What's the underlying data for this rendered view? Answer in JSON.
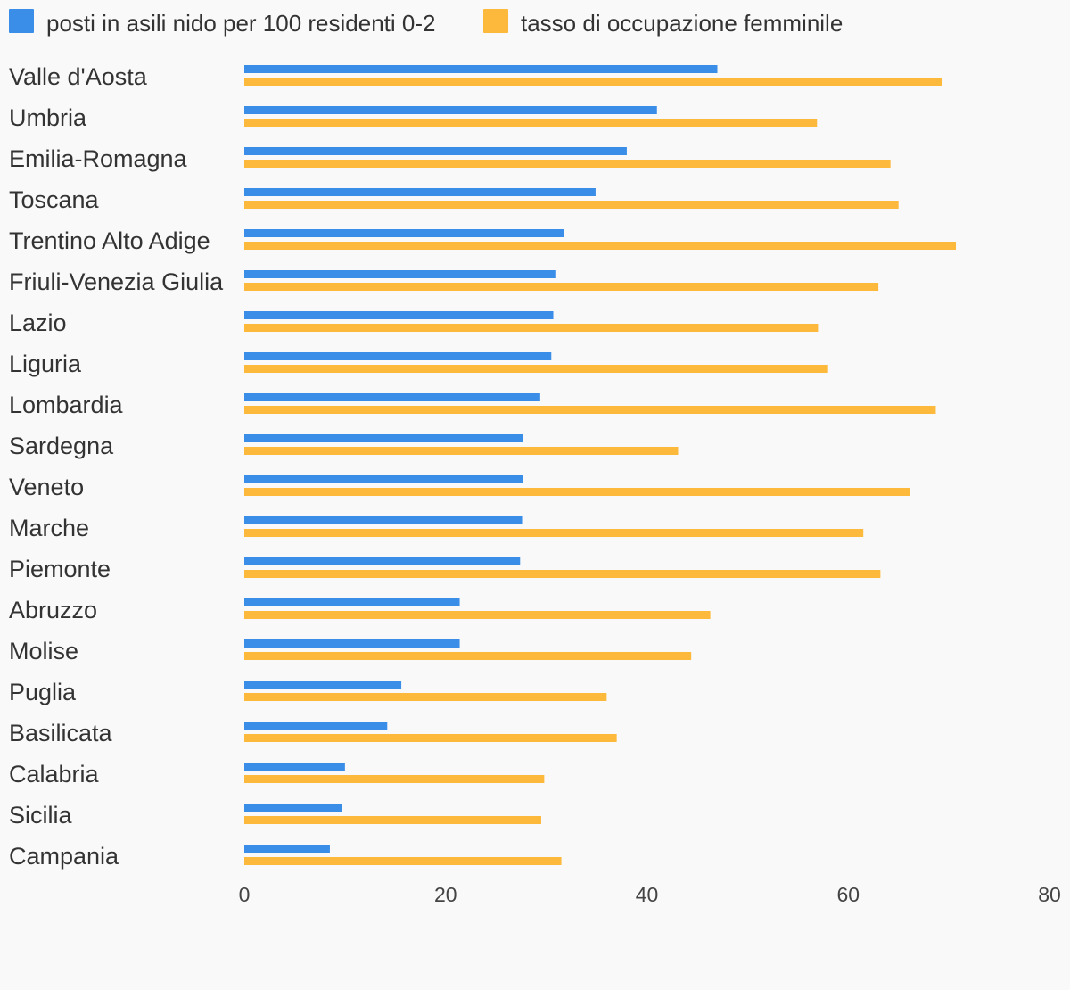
{
  "chart_data": {
    "type": "bar",
    "orientation": "horizontal",
    "categories": [
      "Valle d'Aosta",
      "Umbria",
      "Emilia-Romagna",
      "Toscana",
      "Trentino Alto Adige",
      "Friuli-Venezia Giulia",
      "Lazio",
      "Liguria",
      "Lombardia",
      "Sardegna",
      "Veneto",
      "Marche",
      "Piemonte",
      "Abruzzo",
      "Molise",
      "Puglia",
      "Basilicata",
      "Calabria",
      "Sicilia",
      "Campania"
    ],
    "series": [
      {
        "name": "posti in asili nido per 100 residenti 0-2",
        "color": "#3b8ee8",
        "values": [
          47.0,
          41.0,
          38.0,
          34.9,
          31.8,
          30.9,
          30.7,
          30.5,
          29.4,
          27.7,
          27.7,
          27.6,
          27.4,
          21.4,
          21.4,
          15.6,
          14.2,
          10.0,
          9.7,
          8.5
        ]
      },
      {
        "name": "tasso di occupazione femminile",
        "color": "#fdb93b",
        "values": [
          69.3,
          56.9,
          64.2,
          65.0,
          70.7,
          63.0,
          57.0,
          58.0,
          68.7,
          43.1,
          66.1,
          61.5,
          63.2,
          46.3,
          44.4,
          36.0,
          37.0,
          29.8,
          29.5,
          31.5
        ]
      }
    ],
    "xlim": [
      0,
      80
    ],
    "xticks": [
      "0",
      "20",
      "40",
      "60",
      "80"
    ],
    "legend_position": "top-left",
    "grid": false
  }
}
